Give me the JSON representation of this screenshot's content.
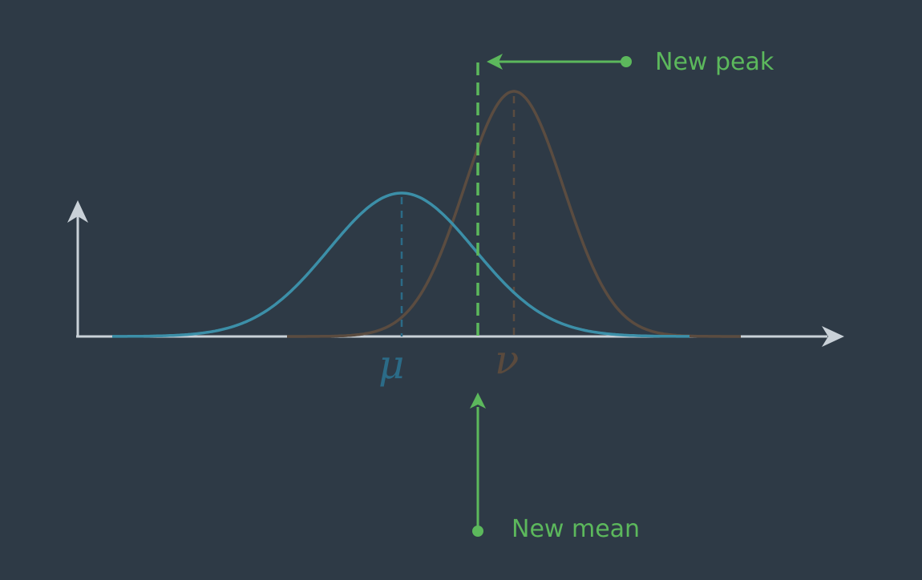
{
  "labels": {
    "new_peak": "New peak",
    "new_mean": "New mean",
    "mu_symbol": "μ",
    "nu_symbol": "ν"
  },
  "colors": {
    "background": "#2e3a46",
    "axis": "#c9d1d8",
    "prior_curve": "#3c8fa8",
    "measurement_curve": "#5b4c40",
    "highlight": "#5cb85c",
    "mu_label": "#2b6b87",
    "nu_label": "#5a4a3d"
  },
  "icons": {
    "axis_arrowheads": "arrowhead-icon",
    "callout_dots": "dot-icon"
  }
}
